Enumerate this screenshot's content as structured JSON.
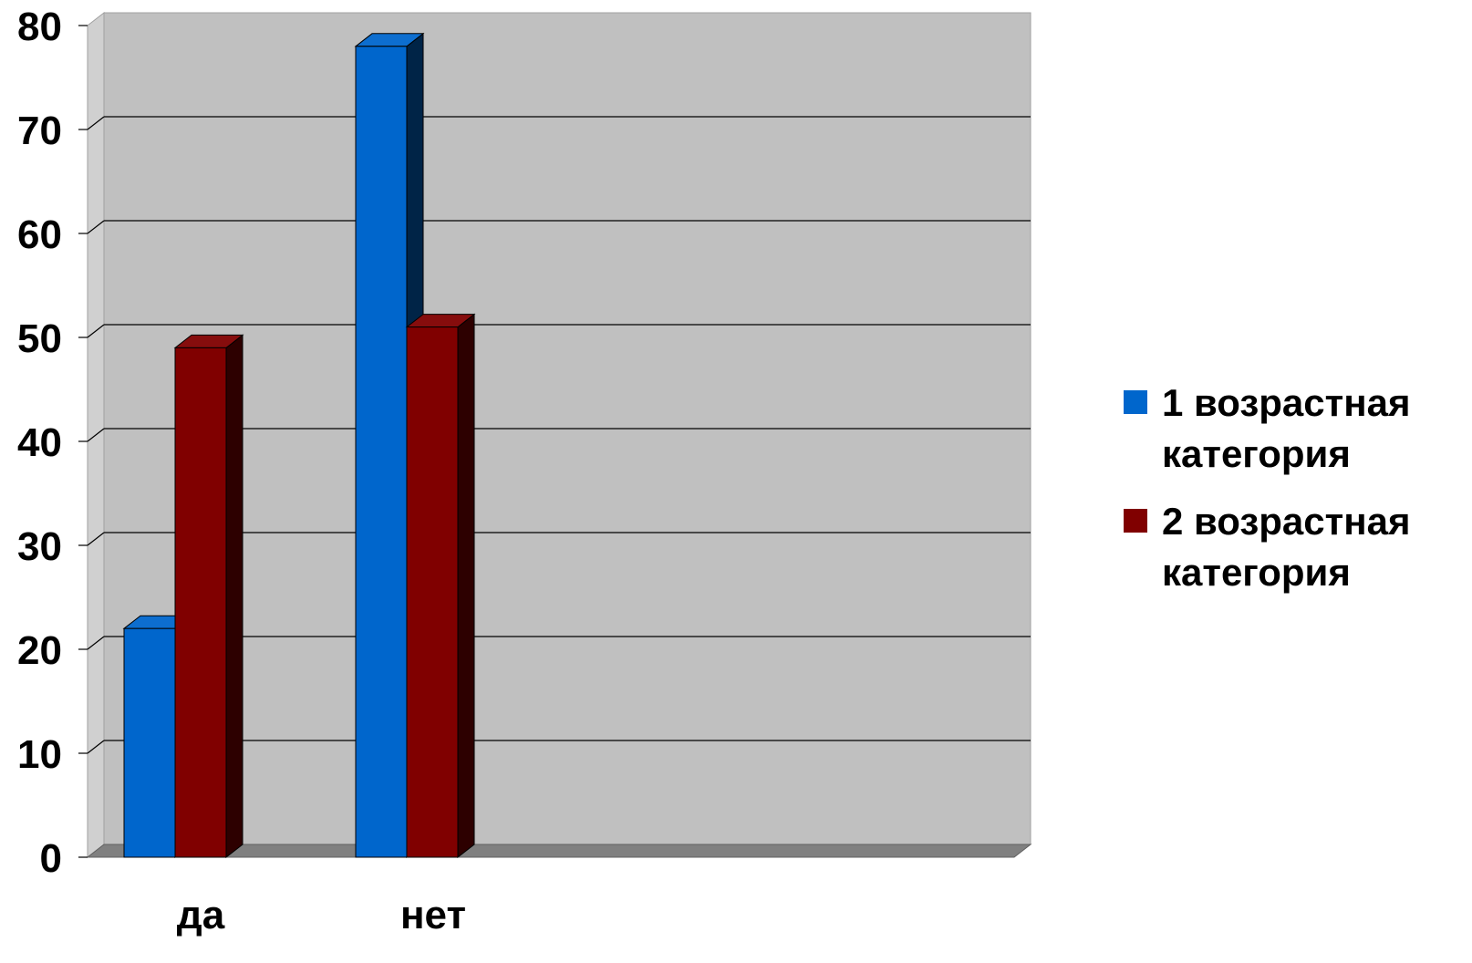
{
  "chart_data": {
    "type": "bar",
    "categories": [
      "да",
      "нет"
    ],
    "series": [
      {
        "name": "1 возрастная категория",
        "values": [
          22,
          78
        ],
        "color": "#0066cc"
      },
      {
        "name": "2 возрастная категория",
        "values": [
          49,
          51
        ],
        "color": "#800000"
      }
    ],
    "ylim": [
      0,
      80
    ],
    "yticks": [
      "0",
      "10",
      "20",
      "30",
      "40",
      "50",
      "60",
      "70",
      "80"
    ],
    "grid": true,
    "style": "3d-column",
    "legend_position": "right"
  }
}
